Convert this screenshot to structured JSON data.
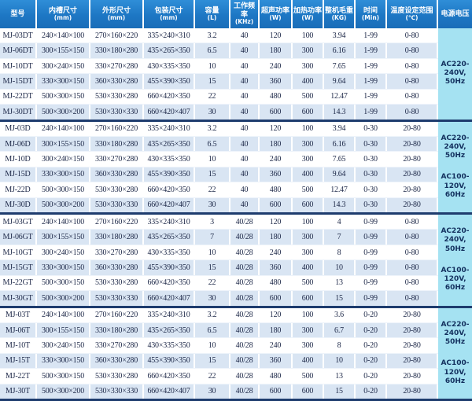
{
  "colors": {
    "header_bg": "#1d77c4",
    "row_alt_bg": "#d9e5f3",
    "voltage_bg": "#a5e2f2",
    "group_separator": "#1e3c6e",
    "body_text": "#1c2747",
    "header_text": "#ffffff"
  },
  "header": {
    "columns": [
      {
        "title": "型号",
        "unit": ""
      },
      {
        "title": "内槽尺寸",
        "unit": "(mm)"
      },
      {
        "title": "外形尺寸",
        "unit": "(mm)"
      },
      {
        "title": "包装尺寸",
        "unit": "(mm)"
      },
      {
        "title": "容量",
        "unit": "(L)"
      },
      {
        "title": "工作频率",
        "unit": "(KHz)"
      },
      {
        "title": "超声功率",
        "unit": "(W)"
      },
      {
        "title": "加热功率",
        "unit": "(W)"
      },
      {
        "title": "整机毛重",
        "unit": "(KG)"
      },
      {
        "title": "时间",
        "unit": "(Min)"
      },
      {
        "title": "温度设定范围",
        "unit": "(℃)"
      },
      {
        "title": "电源电压",
        "unit": ""
      }
    ]
  },
  "groups": [
    {
      "voltage_entries": [
        {
          "lines": [
            "AC220-",
            "240V,",
            "50Hz"
          ]
        }
      ],
      "rows": [
        [
          "MJ-03DT",
          "240×140×100",
          "270×160×220",
          "335×240×310",
          "3.2",
          "40",
          "120",
          "100",
          "3.94",
          "1-99",
          "0-80"
        ],
        [
          "MJ-06DT",
          "300×155×150",
          "330×180×280",
          "435×265×350",
          "6.5",
          "40",
          "180",
          "300",
          "6.16",
          "1-99",
          "0-80"
        ],
        [
          "MJ-10DT",
          "300×240×150",
          "330×270×280",
          "430×335×350",
          "10",
          "40",
          "240",
          "300",
          "7.65",
          "1-99",
          "0-80"
        ],
        [
          "MJ-15DT",
          "330×300×150",
          "360×330×280",
          "455×390×350",
          "15",
          "40",
          "360",
          "400",
          "9.64",
          "1-99",
          "0-80"
        ],
        [
          "MJ-22DT",
          "500×300×150",
          "530×330×280",
          "660×420×350",
          "22",
          "40",
          "480",
          "500",
          "12.47",
          "1-99",
          "0-80"
        ],
        [
          "MJ-30DT",
          "500×300×200",
          "530×330×330",
          "660×420×407",
          "30",
          "40",
          "600",
          "600",
          "14.3",
          "1-99",
          "0-80"
        ]
      ]
    },
    {
      "voltage_entries": [
        {
          "lines": [
            "AC220-",
            "240V,",
            "50Hz"
          ]
        },
        {
          "lines": [
            "AC100-",
            "120V,",
            "60Hz"
          ]
        }
      ],
      "rows": [
        [
          "MJ-03D",
          "240×140×100",
          "270×160×220",
          "335×240×310",
          "3.2",
          "40",
          "120",
          "100",
          "3.94",
          "0-30",
          "20-80"
        ],
        [
          "MJ-06D",
          "300×155×150",
          "330×180×280",
          "435×265×350",
          "6.5",
          "40",
          "180",
          "300",
          "6.16",
          "0-30",
          "20-80"
        ],
        [
          "MJ-10D",
          "300×240×150",
          "330×270×280",
          "430×335×350",
          "10",
          "40",
          "240",
          "300",
          "7.65",
          "0-30",
          "20-80"
        ],
        [
          "MJ-15D",
          "330×300×150",
          "360×330×280",
          "455×390×350",
          "15",
          "40",
          "360",
          "400",
          "9.64",
          "0-30",
          "20-80"
        ],
        [
          "MJ-22D",
          "500×300×150",
          "530×330×280",
          "660×420×350",
          "22",
          "40",
          "480",
          "500",
          "12.47",
          "0-30",
          "20-80"
        ],
        [
          "MJ-30D",
          "500×300×200",
          "530×330×330",
          "660×420×407",
          "30",
          "40",
          "600",
          "600",
          "14.3",
          "0-30",
          "20-80"
        ]
      ]
    },
    {
      "voltage_entries": [
        {
          "lines": [
            "AC220-",
            "240V,",
            "50Hz"
          ]
        },
        {
          "lines": [
            "AC100-",
            "120V,",
            "60Hz"
          ]
        }
      ],
      "rows": [
        [
          "MJ-03GT",
          "240×140×100",
          "270×160×220",
          "335×240×310",
          "3",
          "40/28",
          "120",
          "100",
          "4",
          "0-99",
          "0-80"
        ],
        [
          "MJ-06GT",
          "300×155×150",
          "330×180×280",
          "435×265×350",
          "7",
          "40/28",
          "180",
          "300",
          "7",
          "0-99",
          "0-80"
        ],
        [
          "MJ-10GT",
          "300×240×150",
          "330×270×280",
          "430×335×350",
          "10",
          "40/28",
          "240",
          "300",
          "8",
          "0-99",
          "0-80"
        ],
        [
          "MJ-15GT",
          "330×300×150",
          "360×330×280",
          "455×390×350",
          "15",
          "40/28",
          "360",
          "400",
          "10",
          "0-99",
          "0-80"
        ],
        [
          "MJ-22GT",
          "500×300×150",
          "530×330×280",
          "660×420×350",
          "22",
          "40/28",
          "480",
          "500",
          "13",
          "0-99",
          "0-80"
        ],
        [
          "MJ-30GT",
          "500×300×200",
          "530×330×330",
          "660×420×407",
          "30",
          "40/28",
          "600",
          "600",
          "15",
          "0-99",
          "0-80"
        ]
      ]
    },
    {
      "voltage_entries": [
        {
          "lines": [
            "AC220-",
            "240V,",
            "50Hz"
          ]
        },
        {
          "lines": [
            "AC100-",
            "120V,",
            "60Hz"
          ]
        }
      ],
      "rows": [
        [
          "MJ-03T",
          "240×140×100",
          "270×160×220",
          "335×240×310",
          "3.2",
          "40/28",
          "120",
          "100",
          "3.6",
          "0-20",
          "20-80"
        ],
        [
          "MJ-06T",
          "300×155×150",
          "330×180×280",
          "435×265×350",
          "6.5",
          "40/28",
          "180",
          "300",
          "6.7",
          "0-20",
          "20-80"
        ],
        [
          "MJ-10T",
          "300×240×150",
          "330×270×280",
          "430×335×350",
          "10",
          "40/28",
          "240",
          "300",
          "8",
          "0-20",
          "20-80"
        ],
        [
          "MJ-15T",
          "330×300×150",
          "360×330×280",
          "455×390×350",
          "15",
          "40/28",
          "360",
          "400",
          "10",
          "0-20",
          "20-80"
        ],
        [
          "MJ-22T",
          "500×300×150",
          "530×330×280",
          "660×420×350",
          "22",
          "40/28",
          "480",
          "500",
          "13",
          "0-20",
          "20-80"
        ],
        [
          "MJ-30T",
          "500×300×200",
          "530×330×330",
          "660×420×407",
          "30",
          "40/28",
          "600",
          "600",
          "15",
          "0-20",
          "20-80"
        ]
      ]
    }
  ]
}
